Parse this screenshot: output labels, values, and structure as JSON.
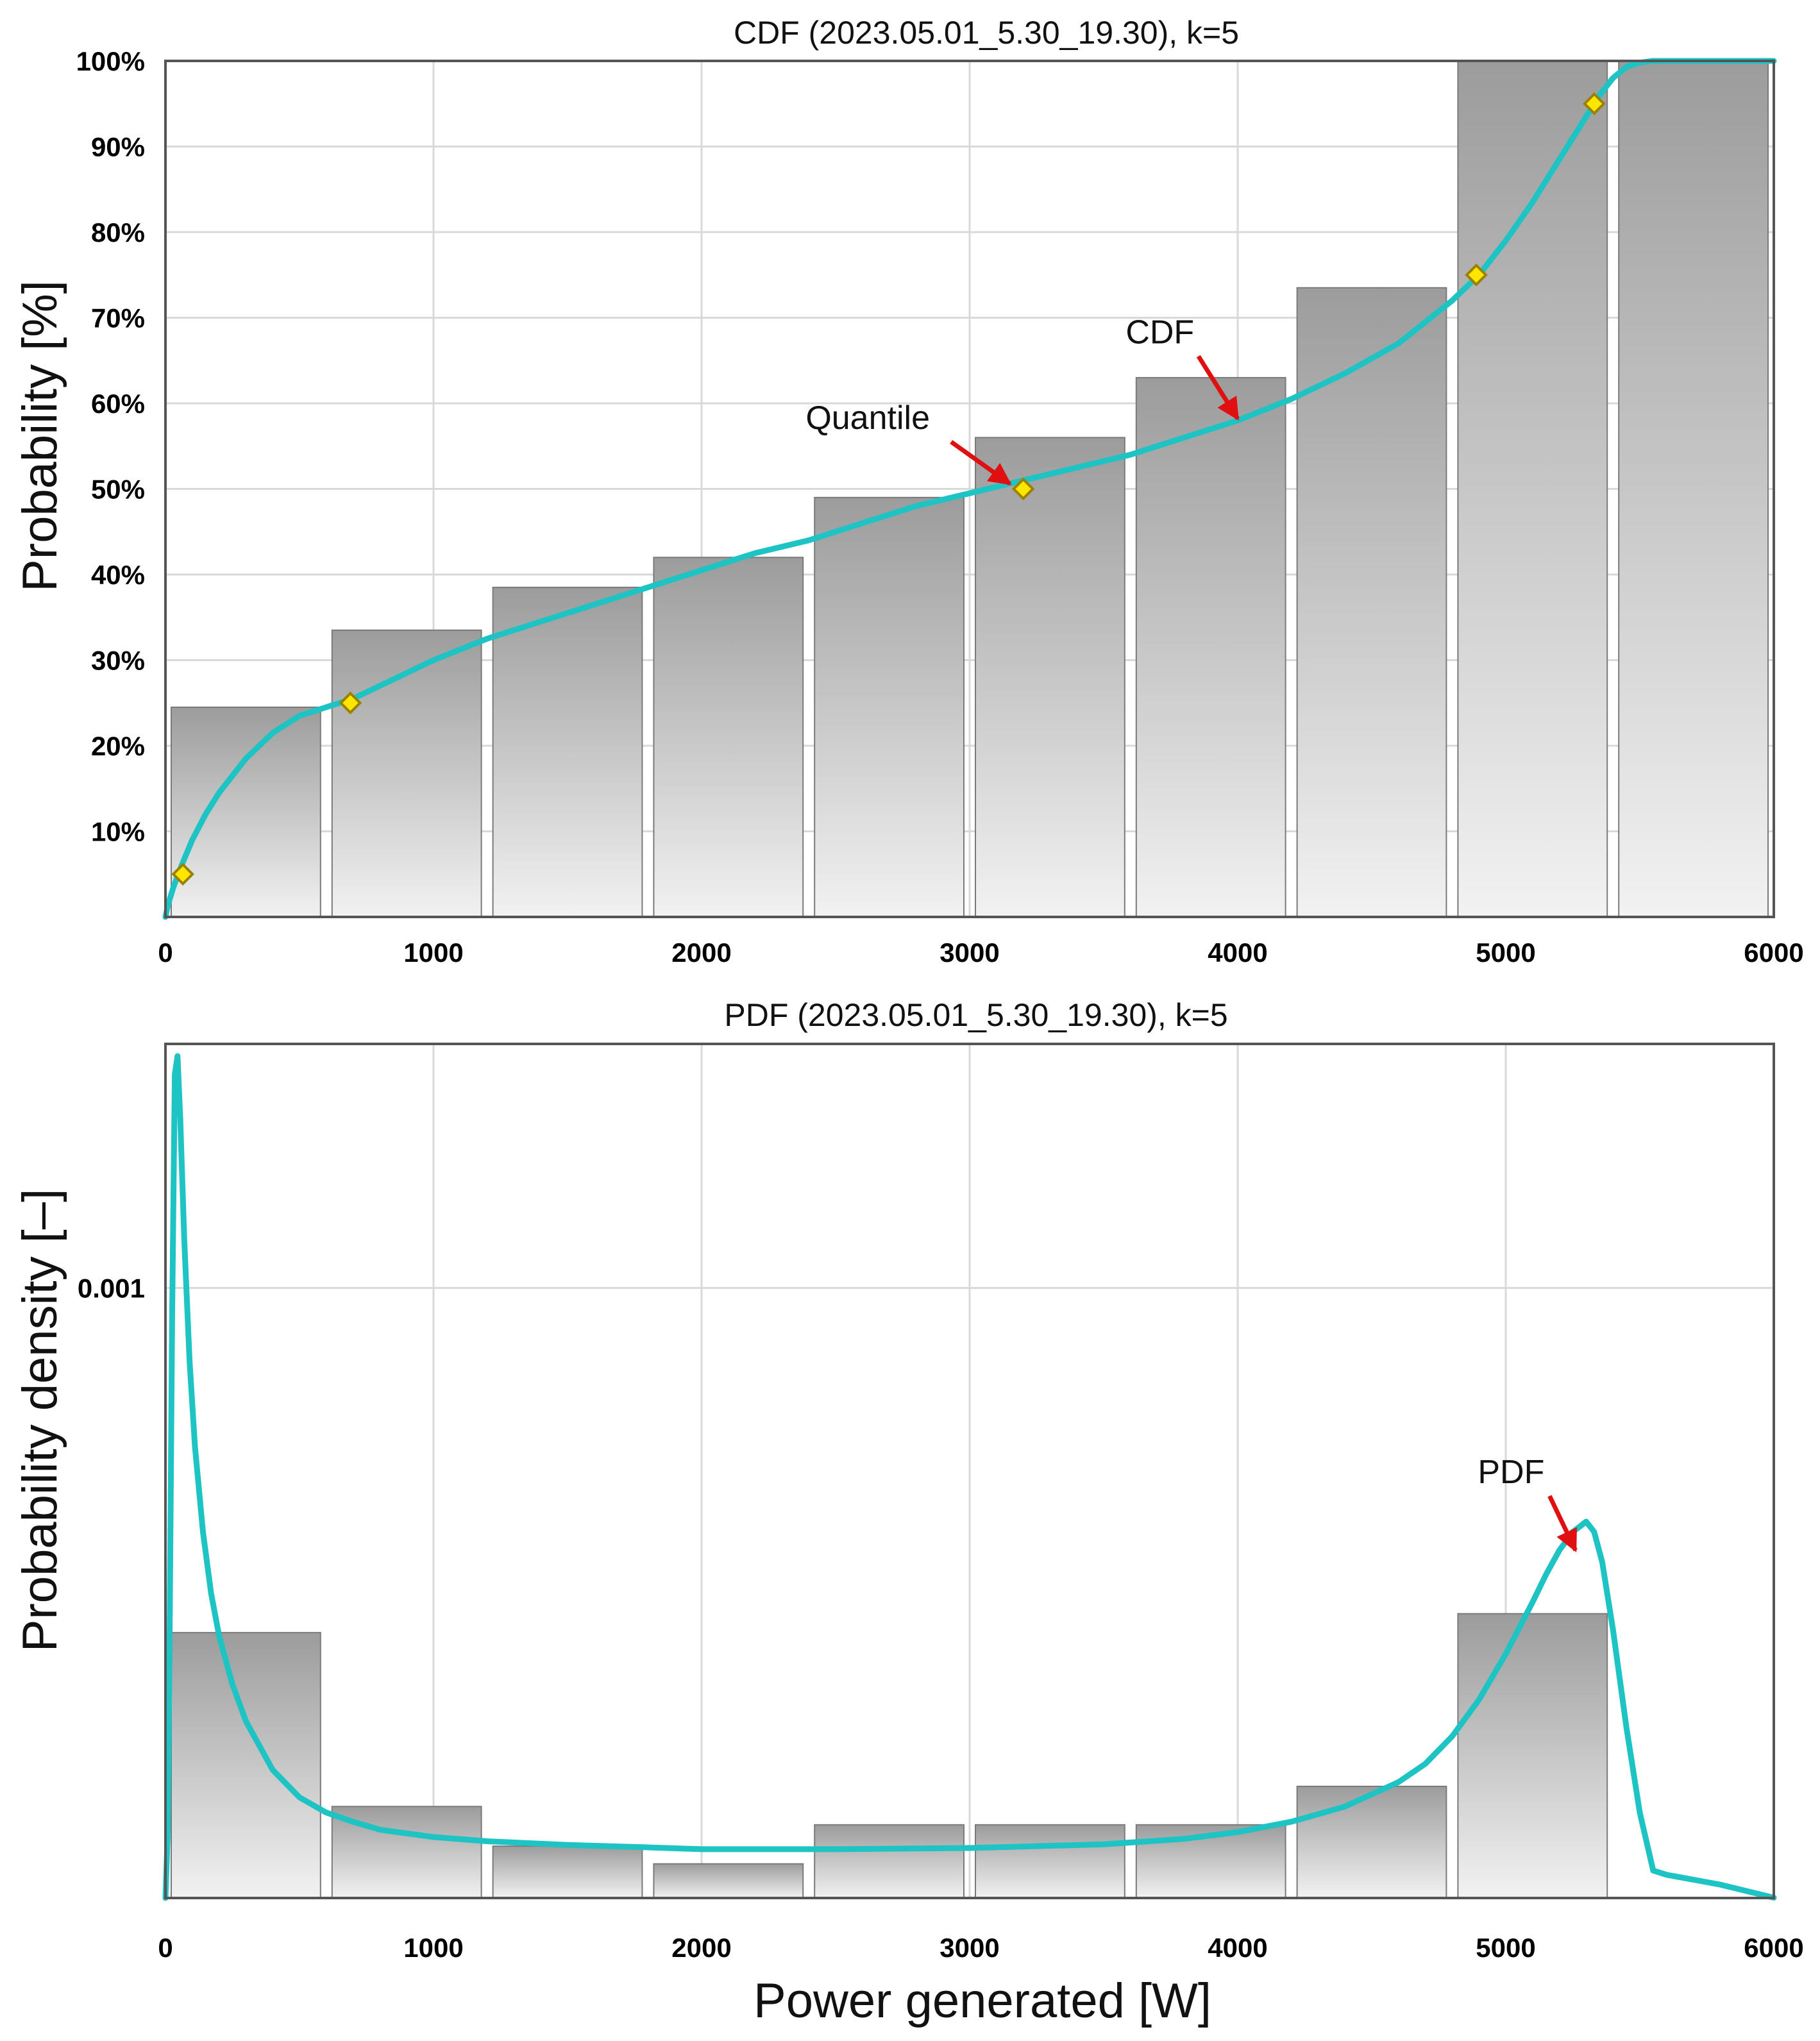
{
  "colors": {
    "curve": "#1ec3c3",
    "bar_top": "#9c9c9c",
    "bar_bottom": "#f2f2f2",
    "grid": "#d9d9d9",
    "frame": "#555555",
    "marker_fill": "#ffe600",
    "marker_stroke": "#9a8200",
    "arrow": "#e01010"
  },
  "chart_data": [
    {
      "id": "cdf",
      "type": "bar",
      "title": "CDF (2023.05.01_5.30_19.30), k=5",
      "xlabel": "",
      "ylabel": "Probability [%]",
      "xlim": [
        0,
        6000
      ],
      "ylim": [
        0,
        100
      ],
      "grid": true,
      "xticks": [
        0,
        1000,
        2000,
        3000,
        4000,
        5000,
        6000
      ],
      "xtick_labels": [
        "0",
        "1000",
        "2000",
        "3000",
        "4000",
        "5000",
        "6000"
      ],
      "yticks": [
        10,
        20,
        30,
        40,
        50,
        60,
        70,
        80,
        90,
        100
      ],
      "ytick_labels": [
        "10%",
        "20%",
        "30%",
        "40%",
        "50%",
        "60%",
        "70%",
        "80%",
        "90%",
        "100%"
      ],
      "bars": {
        "bin_width": 600,
        "bins": [
          [
            0,
            600
          ],
          [
            600,
            1200
          ],
          [
            1200,
            1800
          ],
          [
            1800,
            2400
          ],
          [
            2400,
            3000
          ],
          [
            3000,
            3600
          ],
          [
            3600,
            4200
          ],
          [
            4200,
            4800
          ],
          [
            4800,
            5400
          ],
          [
            5400,
            6000
          ]
        ],
        "values": [
          24.5,
          33.5,
          38.5,
          42,
          49,
          56,
          63,
          73.5,
          100,
          100
        ]
      },
      "series": [
        {
          "name": "CDF",
          "type": "line",
          "x": [
            0,
            10,
            30,
            60,
            100,
            150,
            200,
            300,
            400,
            500,
            600,
            700,
            800,
            900,
            1000,
            1200,
            1400,
            1600,
            1800,
            2000,
            2200,
            2400,
            2600,
            2800,
            3000,
            3200,
            3400,
            3600,
            3800,
            4000,
            4200,
            4400,
            4600,
            4800,
            4900,
            5000,
            5100,
            5200,
            5300,
            5350,
            5400,
            5450,
            5500,
            5550,
            5600,
            5800,
            6000
          ],
          "y": [
            0,
            1.5,
            3.5,
            6,
            9,
            12,
            14.5,
            18.5,
            21.5,
            23.5,
            24.5,
            25.5,
            27,
            28.5,
            30,
            32.5,
            34.5,
            36.5,
            38.5,
            40.5,
            42.5,
            44,
            46,
            48,
            49.5,
            51,
            52.5,
            54,
            56,
            58,
            60.5,
            63.5,
            67,
            72,
            75,
            79,
            83.5,
            88.5,
            93.5,
            96,
            98,
            99.3,
            99.8,
            100,
            100,
            100,
            100
          ]
        }
      ],
      "quantile_points": {
        "x": [
          65,
          690,
          3200,
          4890,
          5330
        ],
        "y": [
          5,
          25,
          50,
          75,
          95
        ]
      },
      "annotations": [
        {
          "text": "Quantile",
          "x": 2620,
          "y": 57,
          "arrow_to": [
            3150,
            50.6
          ]
        },
        {
          "text": "CDF",
          "x": 3710,
          "y": 67,
          "arrow_to": [
            4000,
            58.2
          ]
        }
      ]
    },
    {
      "id": "pdf",
      "type": "bar",
      "title": "PDF (2023.05.01_5.30_19.30), k=5",
      "xlabel": "Power generated [W]",
      "ylabel": "Probability density [–]",
      "xlim": [
        0,
        6000
      ],
      "ylim": [
        0,
        0.0014
      ],
      "grid": true,
      "xticks": [
        0,
        1000,
        2000,
        3000,
        4000,
        5000,
        6000
      ],
      "xtick_labels": [
        "0",
        "1000",
        "2000",
        "3000",
        "4000",
        "5000",
        "6000"
      ],
      "yticks": [
        0.001
      ],
      "ytick_labels": [
        "0.001"
      ],
      "bars": {
        "bin_width": 600,
        "bins": [
          [
            0,
            600
          ],
          [
            600,
            1200
          ],
          [
            1200,
            1800
          ],
          [
            1800,
            2400
          ],
          [
            2400,
            3000
          ],
          [
            3000,
            3600
          ],
          [
            3600,
            4200
          ],
          [
            4200,
            4800
          ],
          [
            4800,
            5400
          ],
          [
            5400,
            6000
          ]
        ],
        "values": [
          0.000435,
          0.00015,
          8.5e-05,
          5.6e-05,
          0.00012,
          0.00012,
          0.00012,
          0.000183,
          0.000466,
          0
        ]
      },
      "series": [
        {
          "name": "PDF",
          "type": "line",
          "x": [
            0,
            8,
            15,
            25,
            35,
            45,
            55,
            70,
            90,
            110,
            140,
            170,
            200,
            250,
            300,
            400,
            500,
            600,
            700,
            800,
            1000,
            1200,
            1500,
            1800,
            2000,
            2500,
            3000,
            3500,
            3800,
            4000,
            4200,
            4400,
            4600,
            4700,
            4800,
            4900,
            5000,
            5100,
            5150,
            5200,
            5250,
            5300,
            5330,
            5360,
            5400,
            5450,
            5500,
            5550,
            5600,
            5800,
            6000
          ],
          "y": [
            0,
            0.0001,
            0.0004,
            0.00095,
            0.00135,
            0.00138,
            0.00128,
            0.00108,
            0.00088,
            0.00074,
            0.0006,
            0.0005,
            0.00043,
            0.00035,
            0.00029,
            0.00021,
            0.000165,
            0.00014,
            0.000125,
            0.000112,
            0.0001,
            9.3e-05,
            8.7e-05,
            8.3e-05,
            8e-05,
            8e-05,
            8.2e-05,
            8.8e-05,
            9.7e-05,
            0.000108,
            0.000125,
            0.00015,
            0.00019,
            0.00022,
            0.000265,
            0.000325,
            0.0004,
            0.000485,
            0.00053,
            0.00057,
            0.0006,
            0.000617,
            0.0006,
            0.00055,
            0.00044,
            0.00028,
            0.00014,
            4.5e-05,
            3.8e-05,
            2.2e-05,
            5e-07
          ]
        }
      ],
      "annotations": [
        {
          "text": "PDF",
          "x": 5020,
          "y": 0.00068,
          "arrow_to": [
            5260,
            0.00057
          ]
        }
      ]
    }
  ]
}
